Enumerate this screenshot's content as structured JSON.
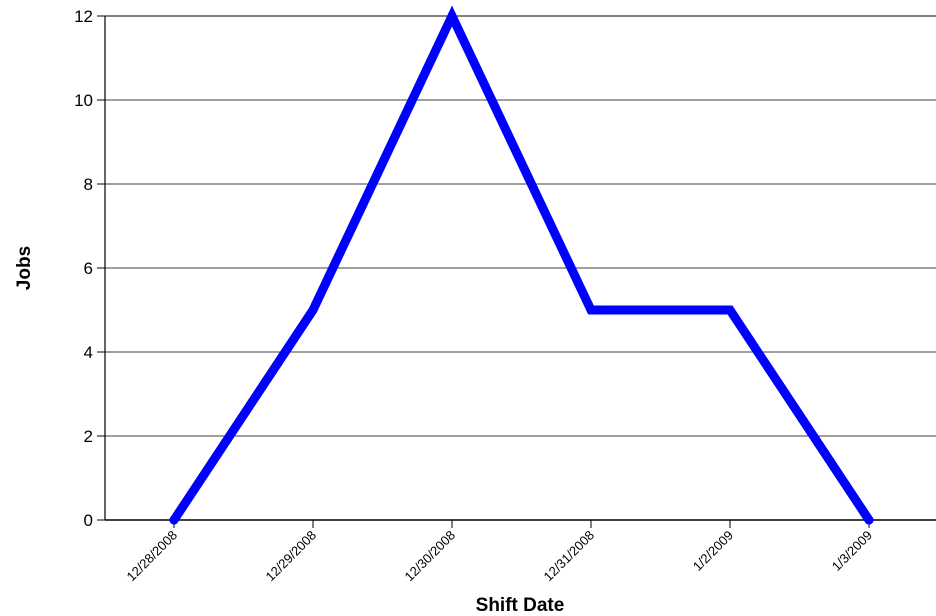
{
  "chart_data": {
    "type": "line",
    "title": "",
    "xlabel": "Shift Date",
    "ylabel": "Jobs",
    "categories": [
      "12/28/2008",
      "12/29/2008",
      "12/30/2008",
      "12/31/2008",
      "1/2/2009",
      "1/3/2009"
    ],
    "series": [
      {
        "values": [
          0,
          5,
          12,
          5,
          5,
          0
        ],
        "color": "#0000ff"
      }
    ],
    "ylim": [
      0,
      12
    ],
    "yticks": [
      "0",
      "2",
      "4",
      "6",
      "8",
      "10",
      "12"
    ],
    "grid": true,
    "legend": "none"
  }
}
